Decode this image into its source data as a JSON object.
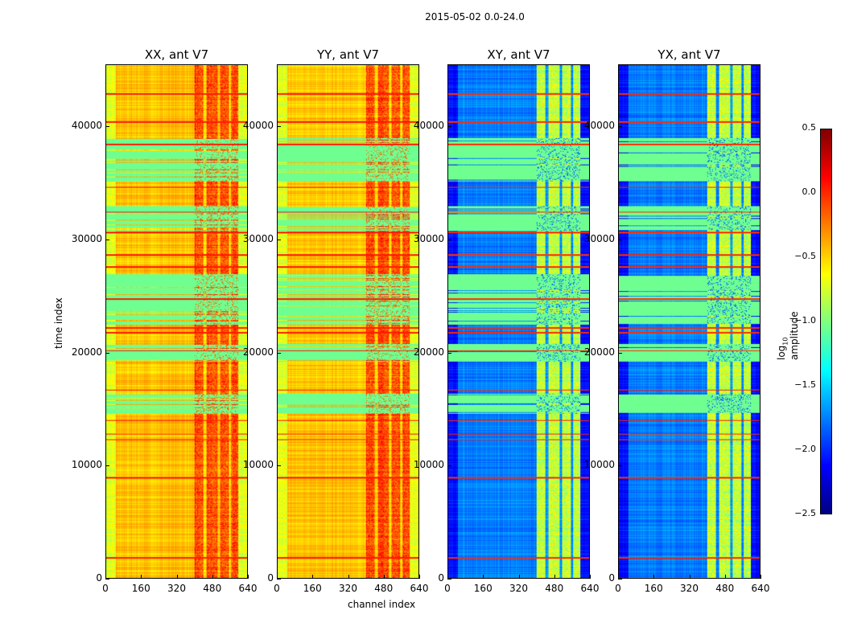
{
  "chart_data": {
    "type": "heatmap",
    "suptitle": "2015-05-02 0.0-24.0",
    "xlabel": "channel index",
    "ylabel": "time index",
    "xlim": [
      0,
      640
    ],
    "ylim": [
      0,
      45500
    ],
    "xticks": [
      "0",
      "160",
      "320",
      "480",
      "640"
    ],
    "xtick_values": [
      0,
      160,
      320,
      480,
      640
    ],
    "yticks": [
      "0",
      "10000",
      "20000",
      "30000",
      "40000"
    ],
    "ytick_values": [
      0,
      10000,
      20000,
      30000,
      40000
    ],
    "colorbar": {
      "label": "log10 amplitude",
      "label_main": "log",
      "label_sub": "10",
      "label_rest": " amplitude",
      "range": [
        -2.5,
        0.5
      ],
      "ticks": [
        "0.5",
        "0.0",
        "−0.5",
        "−1.0",
        "−1.5",
        "−2.0",
        "−2.5"
      ],
      "tick_values": [
        0.5,
        0.0,
        -0.5,
        -1.0,
        -1.5,
        -2.0,
        -2.5
      ],
      "colormap": "jet"
    },
    "panels": [
      {
        "title": "XX, ant V7",
        "base": -0.45,
        "edge": -0.7,
        "band": [
          400,
          600
        ],
        "band_value": -0.1,
        "flag_value": -1.05
      },
      {
        "title": "YY, ant V7",
        "base": -0.45,
        "edge": -0.7,
        "band": [
          400,
          600
        ],
        "band_value": -0.1,
        "flag_value": -1.05
      },
      {
        "title": "XY, ant V7",
        "base": -1.75,
        "edge": -2.1,
        "band": [
          400,
          600
        ],
        "band_value": -0.8,
        "flag_value": -1.05
      },
      {
        "title": "YX, ant V7",
        "base": -1.75,
        "edge": -2.1,
        "band": [
          400,
          600
        ],
        "band_value": -0.8,
        "flag_value": -1.05
      }
    ],
    "flagged_time_ranges": [
      [
        35200,
        39100
      ],
      [
        22500,
        27000
      ],
      [
        19200,
        20800
      ],
      [
        14600,
        16400
      ],
      [
        30800,
        33000
      ]
    ],
    "bright_rows": [
      43000,
      40500,
      38500,
      34700,
      32500,
      30700,
      28700,
      27600,
      24800,
      22200,
      21800,
      20200,
      16700,
      14000,
      12800,
      12300,
      8900,
      1800
    ]
  }
}
